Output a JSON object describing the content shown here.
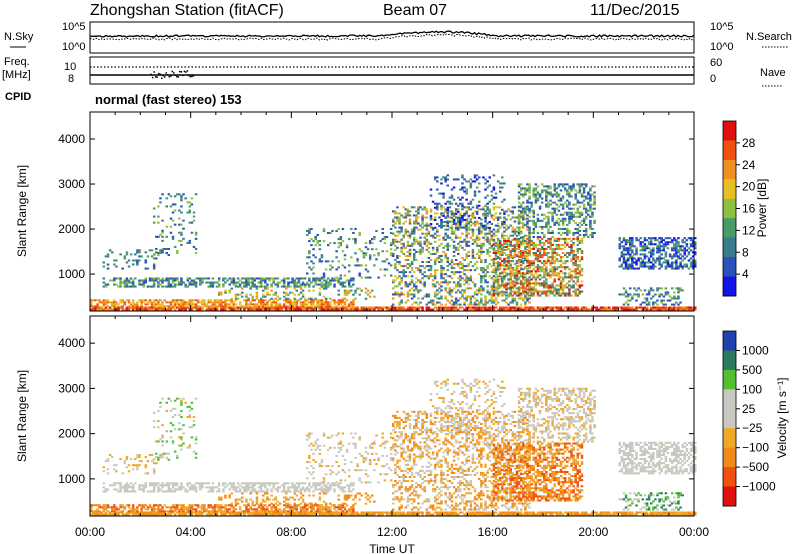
{
  "header": {
    "station": "Zhongshan Station (fitACF)",
    "beam": "Beam 07",
    "date": "11/Dec/2015"
  },
  "left_labels": {
    "nsky": "N.Sky",
    "freq": "Freq.",
    "freq_unit": "[MHz]",
    "cpid": "CPID"
  },
  "right_labels": {
    "nsearch": "N.Search",
    "nave": "Nave"
  },
  "cpid_text": "normal (fast stereo) 153",
  "power_legend": {
    "title": "Power [dB]",
    "ticks": [
      "28",
      "24",
      "20",
      "16",
      "12",
      "8",
      "4"
    ]
  },
  "velocity_legend": {
    "title": "Velocity [m s⁻¹]",
    "ticks": [
      "1000",
      "500",
      "100",
      "25",
      "−25",
      "−100",
      "−500",
      "−1000"
    ]
  },
  "colors": {
    "power_scale": [
      "#1414e6",
      "#2a52b8",
      "#3a7a8a",
      "#4a9a6a",
      "#90c040",
      "#e6c020",
      "#f09020",
      "#f05010",
      "#e01010"
    ],
    "velocity_scale": [
      "#e01010",
      "#f05010",
      "#f08a18",
      "#f0a828",
      "#c8c8c0",
      "#c8c8c0",
      "#50c030",
      "#2a7a60",
      "#2040b0"
    ]
  },
  "chart_data": [
    {
      "type": "line",
      "panel": "noise",
      "series": [
        {
          "name": "N.Sky",
          "style": "solid"
        },
        {
          "name": "N.Search",
          "style": "dotted"
        }
      ],
      "ytick_labels": [
        "10^5",
        "10^0"
      ]
    },
    {
      "type": "line",
      "panel": "frequency / nave",
      "series": [
        {
          "name": "Freq. [MHz]",
          "style": "solid",
          "approx_value": 9
        },
        {
          "name": "Nave",
          "style": "dotted",
          "approx_value": 37
        }
      ],
      "y_left_ticks": [
        "10",
        "8"
      ],
      "y_right_ticks": [
        "60",
        "0"
      ]
    },
    {
      "type": "heatmap",
      "panel": "power",
      "ylabel": "Slant Range [km]",
      "yticks": [
        1000,
        2000,
        3000,
        4000
      ],
      "ylim": [
        180,
        4600
      ],
      "xticks": [
        "00:00",
        "04:00",
        "08:00",
        "12:00",
        "16:00",
        "20:00",
        "00:00"
      ],
      "colorbar": {
        "label": "Power [dB]",
        "range": [
          0,
          30
        ]
      }
    },
    {
      "type": "heatmap",
      "panel": "velocity",
      "ylabel": "Slant Range [km]",
      "yticks": [
        1000,
        2000,
        3000,
        4000
      ],
      "ylim": [
        180,
        4600
      ],
      "xticks": [
        "00:00",
        "04:00",
        "08:00",
        "12:00",
        "16:00",
        "20:00",
        "00:00"
      ],
      "xlabel": "Time UT",
      "colorbar": {
        "label": "Velocity [m s⁻¹]",
        "range": [
          -1000,
          1000
        ]
      }
    }
  ]
}
